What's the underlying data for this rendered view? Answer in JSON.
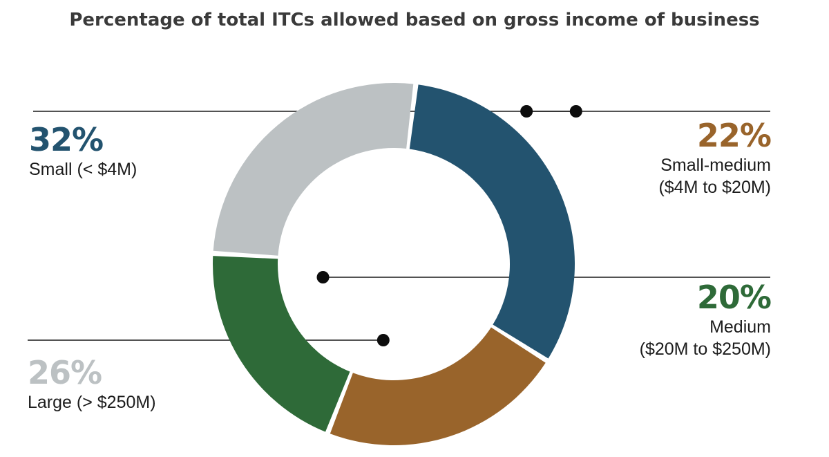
{
  "chart_data": {
    "type": "pie",
    "variant": "donut",
    "title": "Percentage of total ITCs allowed based on gross income of business",
    "unit": "%",
    "slices": [
      {
        "key": "small",
        "label": "Small (< $4M)",
        "value": 32,
        "pct_label": "32%",
        "color": "#23536f"
      },
      {
        "key": "smallmed",
        "label": "Small-medium",
        "sublabel": "($4M to $20M)",
        "value": 22,
        "pct_label": "22%",
        "color": "#99642b"
      },
      {
        "key": "medium",
        "label": "Medium",
        "sublabel": "($20M to $250M)",
        "value": 20,
        "pct_label": "20%",
        "color": "#2e6a38"
      },
      {
        "key": "large",
        "label": "Large (> $250M)",
        "value": 26,
        "pct_label": "26%",
        "color": "#bcc1c3"
      }
    ],
    "start_angle_deg": 7,
    "direction": "clockwise"
  }
}
